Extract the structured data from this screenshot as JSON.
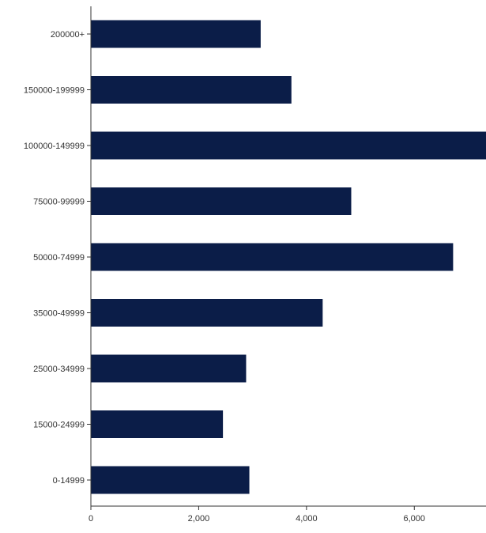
{
  "chart_data": {
    "type": "bar",
    "orientation": "horizontal",
    "categories": [
      "200000+",
      "150000-199999",
      "100000-149999",
      "75000-99999",
      "50000-74999",
      "35000-49999",
      "25000-34999",
      "15000-24999",
      "0-14999"
    ],
    "values": [
      3150,
      3720,
      7330,
      4830,
      6720,
      4300,
      2880,
      2450,
      2940
    ],
    "x_ticks": [
      0,
      2000,
      4000,
      6000
    ],
    "x_tick_labels": [
      "0",
      "2,000",
      "4,000",
      "6,000"
    ],
    "xlim": [
      0,
      7330
    ],
    "bar_color": "#0b1d48",
    "axis_color": "#333333",
    "grid": false,
    "legend": "none",
    "title": "",
    "xlabel": "",
    "ylabel": ""
  }
}
